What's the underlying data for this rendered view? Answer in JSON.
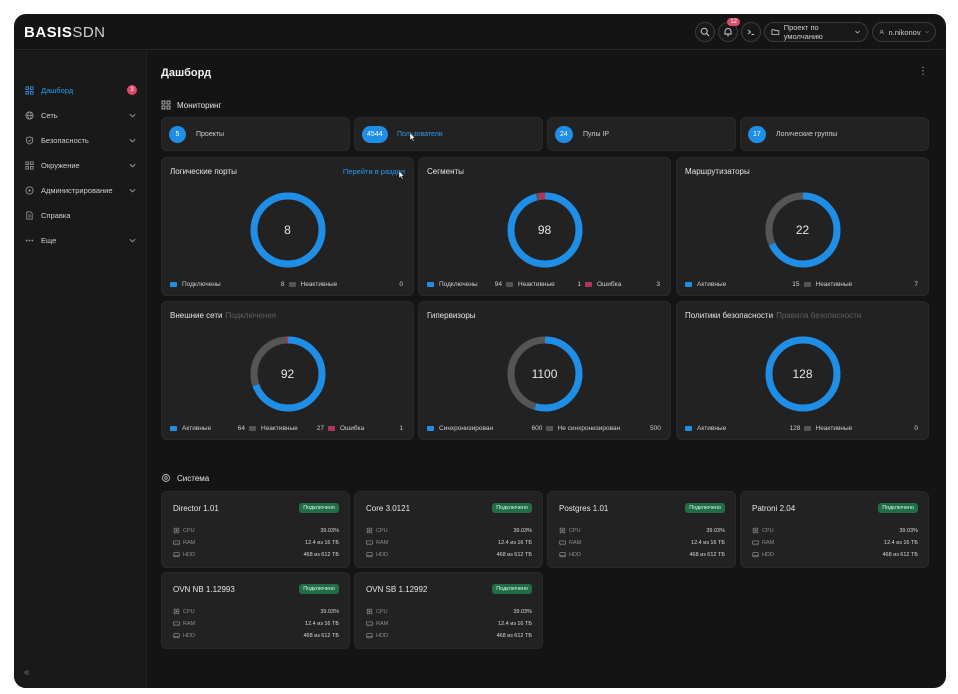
{
  "app": {
    "logo_bold": "BASIS",
    "logo_light": "SDN",
    "notifications_count": "12",
    "project": "Проект по умолчанию",
    "user": "n.nikonov"
  },
  "sidebar": {
    "items": [
      {
        "label": "Дашборд",
        "icon": "dashboard-icon",
        "badge": "3",
        "active": true
      },
      {
        "label": "Сеть",
        "icon": "globe-icon"
      },
      {
        "label": "Безопасность",
        "icon": "shield-icon"
      },
      {
        "label": "Окружение",
        "icon": "grid-icon"
      },
      {
        "label": "Администрирование",
        "icon": "admin-icon"
      },
      {
        "label": "Справка",
        "icon": "doc-icon"
      },
      {
        "label": "Еще",
        "icon": "more-icon"
      }
    ],
    "collapse_label": "«"
  },
  "page": {
    "title": "Дашборд",
    "monitoring_title": "Мониторинг",
    "system_title": "Система"
  },
  "stats": [
    {
      "value": "5",
      "label": "Проекты"
    },
    {
      "value": "4544",
      "label": "Пользователи"
    },
    {
      "value": "24",
      "label": "Пулы IP"
    },
    {
      "value": "17",
      "label": "Логические группы"
    }
  ],
  "widgets": [
    {
      "title": "Логические порты",
      "subtitle": "",
      "link": "Перейти в раздел",
      "total": "8",
      "legend": [
        {
          "label": "Подключены",
          "value": "8",
          "color": "#1f8ee6"
        },
        {
          "label": "Неактивные",
          "value": "0",
          "color": "#555555"
        }
      ]
    },
    {
      "title": "Сегменты",
      "subtitle": "",
      "link": "",
      "total": "98",
      "legend": [
        {
          "label": "Подключены",
          "value": "94",
          "color": "#1f8ee6"
        },
        {
          "label": "Неактивные",
          "value": "1",
          "color": "#555555"
        },
        {
          "label": "Ошибка",
          "value": "3",
          "color": "#b0345a"
        }
      ]
    },
    {
      "title": "Маршрутизаторы",
      "subtitle": "",
      "link": "",
      "total": "22",
      "legend": [
        {
          "label": "Активные",
          "value": "15",
          "color": "#1f8ee6"
        },
        {
          "label": "Неактивные",
          "value": "7",
          "color": "#555555"
        }
      ]
    },
    {
      "title": "Внешние сети",
      "subtitle": "Подключения",
      "link": "",
      "total": "92",
      "legend": [
        {
          "label": "Активные",
          "value": "64",
          "color": "#1f8ee6"
        },
        {
          "label": "Неактивные",
          "value": "27",
          "color": "#555555"
        },
        {
          "label": "Ошибка",
          "value": "1",
          "color": "#b0345a"
        }
      ]
    },
    {
      "title": "Гипервизоры",
      "subtitle": "",
      "link": "",
      "total": "1100",
      "legend": [
        {
          "label": "Синхронизирован",
          "value": "600",
          "color": "#1f8ee6"
        },
        {
          "label": "Не синхронизирован",
          "value": "500",
          "color": "#555555"
        }
      ]
    },
    {
      "title": "Политики безопасности",
      "subtitle": "Правила безопасности",
      "link": "",
      "total": "128",
      "legend": [
        {
          "label": "Активные",
          "value": "128",
          "color": "#1f8ee6"
        },
        {
          "label": "Неактивные",
          "value": "0",
          "color": "#555555"
        }
      ]
    }
  ],
  "systems": [
    {
      "name": "Director 1.01",
      "status": "Подключено",
      "cpu": "39.03%",
      "ram": "12.4 из 16 ТБ",
      "hdd": "468 из 612 ТБ"
    },
    {
      "name": "Core 3.0121",
      "status": "Подключено",
      "cpu": "39.03%",
      "ram": "12.4 из 16 ТБ",
      "hdd": "468 из 612 ТБ"
    },
    {
      "name": "Postgres 1.01",
      "status": "Подключено",
      "cpu": "39.03%",
      "ram": "12.4 из 16 ТБ",
      "hdd": "468 из 612 ТБ"
    },
    {
      "name": "Patroni 2.04",
      "status": "Подключено",
      "cpu": "39.03%",
      "ram": "12.4 из 16 ТБ",
      "hdd": "468 из 612 ТБ"
    },
    {
      "name": "OVN NB 1.12993",
      "status": "Подключено",
      "cpu": "39.03%",
      "ram": "12.4 из 16 ТБ",
      "hdd": "468 из 612 ТБ"
    },
    {
      "name": "OVN SB 1.12992",
      "status": "Подключено",
      "cpu": "39.03%",
      "ram": "12.4 из 16 ТБ",
      "hdd": "468 из 612 ТБ"
    }
  ],
  "metric_labels": {
    "cpu": "CPU",
    "ram": "RAM",
    "hdd": "HDD"
  }
}
